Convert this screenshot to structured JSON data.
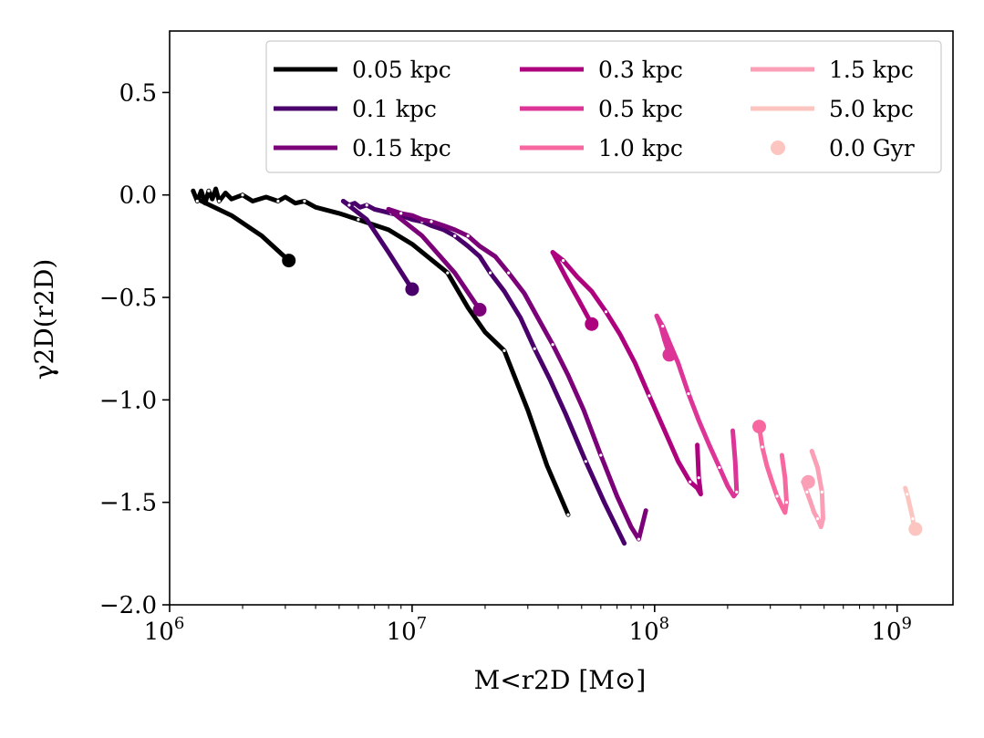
{
  "chart_data": {
    "type": "line",
    "xscale": "log",
    "xlim": [
      1000000,
      1700000000
    ],
    "ylim": [
      -2.0,
      0.8
    ],
    "xlabel": "M<r2D [M⊙]",
    "ylabel": "γ2D(r2D)",
    "x_ticks": [
      {
        "value": 1000000,
        "base": "10",
        "exp": "6"
      },
      {
        "value": 10000000,
        "base": "10",
        "exp": "7"
      },
      {
        "value": 100000000,
        "base": "10",
        "exp": "8"
      },
      {
        "value": 1000000000,
        "base": "10",
        "exp": "9"
      }
    ],
    "y_ticks": [
      {
        "value": 0.5,
        "label": "0.5"
      },
      {
        "value": 0.0,
        "label": "0.0"
      },
      {
        "value": -0.5,
        "label": "−0.5"
      },
      {
        "value": -1.0,
        "label": "−1.0"
      },
      {
        "value": -1.5,
        "label": "−1.5"
      },
      {
        "value": -2.0,
        "label": "−2.0"
      }
    ],
    "grid": false,
    "legend": {
      "placement": "upper-right",
      "columns": 3,
      "marker_entry": {
        "name": "0.0 Gyr",
        "color": "#fcc5c0"
      }
    },
    "series": [
      {
        "name": "0.05 kpc",
        "color": "#000000",
        "x": [
          1250000,
          1300000,
          1350000,
          1400000,
          1450000,
          1500000,
          1550000,
          1600000,
          1700000,
          1800000,
          2000000,
          2200000,
          2500000,
          2800000,
          3000000,
          3300000,
          3600000,
          4000000,
          5000000,
          6000000,
          8000000,
          10000000,
          14000000,
          17000000,
          20000000,
          24000000,
          30000000,
          36000000,
          44000000
        ],
        "y": [
          0.02,
          -0.03,
          0.02,
          -0.04,
          0.02,
          -0.02,
          0.03,
          -0.03,
          0.01,
          -0.02,
          0.0,
          -0.03,
          -0.01,
          -0.03,
          -0.01,
          -0.04,
          -0.03,
          -0.06,
          -0.09,
          -0.12,
          -0.17,
          -0.24,
          -0.38,
          -0.55,
          -0.67,
          -0.76,
          -1.05,
          -1.32,
          -1.56
        ],
        "endpoint": {
          "x": 3100000,
          "y": -0.32
        },
        "tail": {
          "x": [
            1300000,
            1800000,
            2400000,
            3100000
          ],
          "y": [
            -0.02,
            -0.1,
            -0.2,
            -0.32
          ]
        }
      },
      {
        "name": "0.1 kpc",
        "color": "#49006a",
        "x": [
          5200000,
          5500000,
          5800000,
          6100000,
          6500000,
          7000000,
          7600000,
          8200000,
          9000000,
          10000000,
          11000000,
          12000000,
          13500000,
          15000000,
          17000000,
          19000000,
          21000000,
          24000000,
          28000000,
          32000000,
          37000000,
          43000000,
          52000000,
          62000000,
          75000000
        ],
        "y": [
          -0.03,
          -0.05,
          -0.04,
          -0.06,
          -0.05,
          -0.07,
          -0.08,
          -0.09,
          -0.1,
          -0.12,
          -0.13,
          -0.15,
          -0.17,
          -0.2,
          -0.25,
          -0.3,
          -0.38,
          -0.47,
          -0.6,
          -0.75,
          -0.9,
          -1.07,
          -1.3,
          -1.5,
          -1.7
        ],
        "endpoint": {
          "x": 10000000,
          "y": -0.46
        },
        "tail": {
          "x": [
            5200000,
            6500000,
            8000000,
            10000000
          ],
          "y": [
            -0.03,
            -0.12,
            -0.28,
            -0.46
          ]
        }
      },
      {
        "name": "0.15 kpc",
        "color": "#7a0177",
        "x": [
          8000000,
          9000000,
          10000000,
          11000000,
          12000000,
          13500000,
          15000000,
          17000000,
          19000000,
          22000000,
          25000000,
          29000000,
          33000000,
          38000000,
          44000000,
          51000000,
          60000000,
          70000000,
          80000000,
          86000000,
          92000000
        ],
        "y": [
          -0.07,
          -0.09,
          -0.1,
          -0.12,
          -0.13,
          -0.15,
          -0.17,
          -0.2,
          -0.25,
          -0.3,
          -0.38,
          -0.48,
          -0.6,
          -0.73,
          -0.88,
          -1.05,
          -1.27,
          -1.47,
          -1.62,
          -1.68,
          -1.54
        ],
        "endpoint": {
          "x": 19000000,
          "y": -0.56
        },
        "tail": {
          "x": [
            8000000,
            11000000,
            15000000,
            19000000
          ],
          "y": [
            -0.07,
            -0.2,
            -0.38,
            -0.56
          ]
        }
      },
      {
        "name": "0.3 kpc",
        "color": "#ae017e",
        "x": [
          38000000,
          42000000,
          48000000,
          55000000,
          63000000,
          72000000,
          83000000,
          95000000,
          110000000,
          125000000,
          140000000,
          150000000,
          155000000,
          152000000,
          150000000
        ],
        "y": [
          -0.28,
          -0.32,
          -0.4,
          -0.47,
          -0.57,
          -0.68,
          -0.82,
          -0.98,
          -1.15,
          -1.3,
          -1.4,
          -1.43,
          -1.46,
          -1.38,
          -1.22
        ],
        "endpoint": {
          "x": 55000000,
          "y": -0.63
        },
        "tail": {
          "x": [
            38000000,
            43000000,
            49000000,
            55000000
          ],
          "y": [
            -0.28,
            -0.4,
            -0.52,
            -0.63
          ]
        }
      },
      {
        "name": "0.5 kpc",
        "color": "#dd3497",
        "x": [
          102000000,
          108000000,
          115000000,
          125000000,
          138000000,
          152000000,
          168000000,
          185000000,
          200000000,
          212000000,
          218000000,
          215000000,
          210000000
        ],
        "y": [
          -0.59,
          -0.64,
          -0.72,
          -0.82,
          -0.97,
          -1.1,
          -1.22,
          -1.33,
          -1.42,
          -1.47,
          -1.45,
          -1.3,
          -1.15
        ],
        "endpoint": {
          "x": 115000000,
          "y": -0.78
        },
        "tail": {
          "x": [
            102000000,
            106000000,
            110000000,
            115000000
          ],
          "y": [
            -0.59,
            -0.64,
            -0.71,
            -0.78
          ]
        }
      },
      {
        "name": "1.0 kpc",
        "color": "#f768a1",
        "x": [
          270000000,
          278000000,
          290000000,
          305000000,
          320000000,
          335000000,
          345000000,
          350000000,
          345000000,
          335000000
        ],
        "y": [
          -1.13,
          -1.23,
          -1.32,
          -1.4,
          -1.47,
          -1.52,
          -1.55,
          -1.5,
          -1.38,
          -1.27
        ],
        "endpoint": {
          "x": 270000000,
          "y": -1.13
        },
        "tail": {
          "x": [
            270000000
          ],
          "y": [
            -1.13
          ]
        }
      },
      {
        "name": "1.5 kpc",
        "color": "#fa9fb5",
        "x": [
          410000000,
          425000000,
          440000000,
          455000000,
          470000000,
          485000000,
          495000000,
          490000000,
          470000000,
          445000000
        ],
        "y": [
          -1.4,
          -1.45,
          -1.5,
          -1.55,
          -1.58,
          -1.62,
          -1.58,
          -1.45,
          -1.33,
          -1.25
        ],
        "endpoint": {
          "x": 430000000,
          "y": -1.4
        },
        "tail": {
          "x": [
            410000000,
            430000000
          ],
          "y": [
            -1.4,
            -1.4
          ]
        }
      },
      {
        "name": "5.0 kpc",
        "color": "#fcc5c0",
        "x": [
          1080000000,
          1100000000,
          1120000000,
          1140000000,
          1160000000,
          1170000000
        ],
        "y": [
          -1.43,
          -1.46,
          -1.5,
          -1.54,
          -1.58,
          -1.62
        ],
        "endpoint": {
          "x": 1190000000,
          "y": -1.63
        },
        "tail": {
          "x": [
            1190000000
          ],
          "y": [
            -1.63
          ]
        }
      }
    ]
  }
}
